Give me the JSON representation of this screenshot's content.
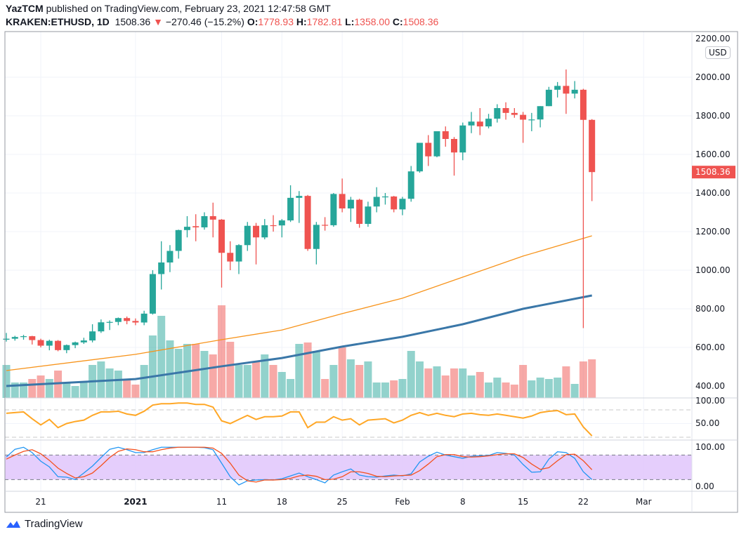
{
  "header": {
    "author": "YazTCM",
    "published": "published on TradingView.com, February 23, 2021 12:47:58 GMT",
    "symbol": "KRAKEN:ETHUSD, 1D",
    "last": "1508.36",
    "change": "−270.46 (−15.2%)",
    "o_label": "O:",
    "o": "1778.93",
    "h_label": "H:",
    "h": "1782.81",
    "l_label": "L:",
    "l": "1358.00",
    "c_label": "C:",
    "c": "1508.36"
  },
  "currency_button": "USD",
  "logo_text": "TradingView",
  "colors": {
    "up": "#26a69a",
    "down": "#ef5350",
    "ma_short": "#f7931a",
    "ma_long": "#3a77a8",
    "rsi": "#ffa726",
    "stoch_k": "#2196f3",
    "stoch_d": "#f4511e",
    "stoch_band": "#e1c6fb",
    "last_price_label": "#ef5350"
  },
  "chart_data": {
    "type": "candlestick",
    "price_axis": {
      "ticks": [
        "2200.00",
        "2000.00",
        "1800.00",
        "1600.00",
        "1400.00",
        "1200.00",
        "1000.00",
        "800.00",
        "600.00",
        "400.00"
      ],
      "range": [
        400,
        2200
      ],
      "last_price_label": "1508.36"
    },
    "time_axis": {
      "ticks": [
        {
          "label": "21",
          "date": "2020-12-21",
          "bold": false
        },
        {
          "label": "2021",
          "date": "2021-01-01",
          "bold": true
        },
        {
          "label": "11",
          "date": "2021-01-11",
          "bold": false
        },
        {
          "label": "18",
          "date": "2021-01-18",
          "bold": false
        },
        {
          "label": "25",
          "date": "2021-01-25",
          "bold": false
        },
        {
          "label": "Feb",
          "date": "2021-02-01",
          "bold": false
        },
        {
          "label": "8",
          "date": "2021-02-08",
          "bold": false
        },
        {
          "label": "15",
          "date": "2021-02-15",
          "bold": false
        },
        {
          "label": "22",
          "date": "2021-02-22",
          "bold": false
        },
        {
          "label": "Mar",
          "date": "2021-03-01",
          "bold": false
        }
      ]
    },
    "start_date": "2020-12-17",
    "ohlc": [
      [
        640,
        675,
        630,
        645
      ],
      [
        645,
        660,
        635,
        654
      ],
      [
        654,
        665,
        640,
        658
      ],
      [
        658,
        660,
        615,
        638
      ],
      [
        638,
        645,
        600,
        609
      ],
      [
        609,
        640,
        585,
        634
      ],
      [
        634,
        638,
        580,
        586
      ],
      [
        586,
        615,
        570,
        612
      ],
      [
        612,
        630,
        596,
        626
      ],
      [
        626,
        650,
        618,
        636
      ],
      [
        636,
        720,
        626,
        683
      ],
      [
        683,
        745,
        675,
        730
      ],
      [
        730,
        740,
        690,
        732
      ],
      [
        732,
        755,
        715,
        752
      ],
      [
        752,
        760,
        720,
        737
      ],
      [
        737,
        750,
        715,
        729
      ],
      [
        729,
        790,
        715,
        775
      ],
      [
        775,
        1000,
        770,
        980
      ],
      [
        980,
        1150,
        900,
        1040
      ],
      [
        1040,
        1130,
        990,
        1100
      ],
      [
        1100,
        1210,
        1060,
        1208
      ],
      [
        1208,
        1280,
        1170,
        1225
      ],
      [
        1228,
        1290,
        1150,
        1222
      ],
      [
        1222,
        1300,
        1210,
        1280
      ],
      [
        1280,
        1350,
        1170,
        1262
      ],
      [
        1262,
        1265,
        910,
        1090
      ],
      [
        1090,
        1150,
        1000,
        1045
      ],
      [
        1045,
        1135,
        980,
        1130
      ],
      [
        1130,
        1250,
        1100,
        1230
      ],
      [
        1230,
        1245,
        1030,
        1170
      ],
      [
        1170,
        1265,
        1160,
        1233
      ],
      [
        1233,
        1285,
        1200,
        1232
      ],
      [
        1232,
        1265,
        1170,
        1258
      ],
      [
        1258,
        1440,
        1250,
        1375
      ],
      [
        1375,
        1410,
        1245,
        1385
      ],
      [
        1385,
        1390,
        1100,
        1110
      ],
      [
        1110,
        1250,
        1030,
        1235
      ],
      [
        1235,
        1275,
        1205,
        1233
      ],
      [
        1233,
        1400,
        1225,
        1395
      ],
      [
        1395,
        1475,
        1300,
        1320
      ],
      [
        1320,
        1380,
        1250,
        1365
      ],
      [
        1365,
        1370,
        1220,
        1240
      ],
      [
        1240,
        1355,
        1225,
        1330
      ],
      [
        1330,
        1430,
        1300,
        1380
      ],
      [
        1380,
        1400,
        1340,
        1382
      ],
      [
        1382,
        1385,
        1300,
        1315
      ],
      [
        1315,
        1380,
        1285,
        1370
      ],
      [
        1370,
        1540,
        1355,
        1512
      ],
      [
        1512,
        1660,
        1505,
        1660
      ],
      [
        1660,
        1700,
        1540,
        1590
      ],
      [
        1590,
        1720,
        1585,
        1720
      ],
      [
        1720,
        1745,
        1640,
        1680
      ],
      [
        1680,
        1690,
        1490,
        1610
      ],
      [
        1610,
        1765,
        1570,
        1750
      ],
      [
        1750,
        1820,
        1710,
        1770
      ],
      [
        1770,
        1840,
        1700,
        1745
      ],
      [
        1745,
        1810,
        1735,
        1785
      ],
      [
        1785,
        1860,
        1765,
        1840
      ],
      [
        1840,
        1870,
        1780,
        1815
      ],
      [
        1815,
        1840,
        1790,
        1805
      ],
      [
        1805,
        1820,
        1660,
        1780
      ],
      [
        1780,
        1815,
        1720,
        1781
      ],
      [
        1781,
        1850,
        1740,
        1850
      ],
      [
        1850,
        1950,
        1850,
        1935
      ],
      [
        1935,
        1975,
        1895,
        1955
      ],
      [
        1955,
        2040,
        1810,
        1915
      ],
      [
        1915,
        1980,
        1890,
        1935
      ],
      [
        1935,
        1940,
        700,
        1779
      ],
      [
        1778.93,
        1782.81,
        1358,
        1508.36
      ]
    ],
    "volume_relative": [
      47,
      22,
      22,
      27,
      32,
      27,
      39,
      22,
      17,
      22,
      47,
      52,
      42,
      39,
      25,
      19,
      47,
      89,
      117,
      82,
      70,
      77,
      77,
      67,
      62,
      132,
      80,
      47,
      47,
      52,
      62,
      47,
      37,
      27,
      77,
      79,
      67,
      27,
      47,
      72,
      55,
      47,
      52,
      22,
      22,
      25,
      27,
      67,
      52,
      42,
      45,
      32,
      42,
      42,
      32,
      37,
      22,
      29,
      22,
      19,
      47,
      25,
      29,
      27,
      29,
      45,
      20,
      52,
      55
    ],
    "ma_short": [
      {
        "date": "2020-12-17",
        "v": 480
      },
      {
        "date": "2021-01-01",
        "v": 564
      },
      {
        "date": "2021-01-11",
        "v": 640
      },
      {
        "date": "2021-01-18",
        "v": 690
      },
      {
        "date": "2021-01-25",
        "v": 775
      },
      {
        "date": "2021-02-01",
        "v": 855
      },
      {
        "date": "2021-02-08",
        "v": 964
      },
      {
        "date": "2021-02-15",
        "v": 1073
      },
      {
        "date": "2021-02-23",
        "v": 1178
      }
    ],
    "ma_long": [
      {
        "date": "2020-12-17",
        "v": 400
      },
      {
        "date": "2021-01-01",
        "v": 436
      },
      {
        "date": "2021-01-11",
        "v": 502
      },
      {
        "date": "2021-01-18",
        "v": 545
      },
      {
        "date": "2021-01-25",
        "v": 604
      },
      {
        "date": "2021-02-01",
        "v": 655
      },
      {
        "date": "2021-02-08",
        "v": 720
      },
      {
        "date": "2021-02-15",
        "v": 800
      },
      {
        "date": "2021-02-23",
        "v": 869
      }
    ],
    "rsi": {
      "ticks": [
        "100.00",
        "50.00"
      ],
      "bands": [
        70,
        30
      ],
      "values": [
        65,
        66,
        67,
        57,
        48,
        56,
        44,
        50,
        53,
        55,
        62,
        67,
        67,
        68,
        64,
        62,
        68,
        77,
        79,
        79,
        80,
        80,
        78,
        78,
        74,
        54,
        50,
        56,
        62,
        56,
        60,
        60,
        61,
        67,
        67,
        44,
        52,
        52,
        60,
        55,
        57,
        48,
        55,
        56,
        57,
        51,
        55,
        62,
        66,
        62,
        65,
        62,
        60,
        64,
        65,
        63,
        62,
        64,
        62,
        60,
        58,
        61,
        66,
        68,
        69,
        63,
        64,
        45,
        32
      ]
    },
    "stoch_rsi": {
      "ticks": [
        "100.00",
        "0.00"
      ],
      "bands": [
        80,
        20
      ],
      "k": [
        75,
        94,
        99,
        86,
        65,
        51,
        27,
        26,
        20,
        36,
        53,
        74,
        94,
        99,
        93,
        86,
        86,
        93,
        99,
        99,
        99,
        99,
        99,
        98,
        93,
        60,
        27,
        7,
        17,
        19,
        20,
        19,
        22,
        29,
        36,
        27,
        20,
        12,
        31,
        39,
        46,
        31,
        27,
        26,
        29,
        31,
        29,
        34,
        63,
        77,
        87,
        80,
        76,
        72,
        77,
        78,
        79,
        86,
        84,
        80,
        57,
        38,
        39,
        70,
        88,
        86,
        72,
        39,
        20
      ],
      "d": [
        70,
        80,
        89,
        93,
        83,
        67,
        48,
        35,
        24,
        27,
        36,
        54,
        74,
        89,
        95,
        93,
        88,
        88,
        93,
        97,
        99,
        99,
        99,
        99,
        97,
        84,
        60,
        31,
        17,
        14,
        19,
        19,
        20,
        23,
        29,
        31,
        28,
        20,
        21,
        27,
        39,
        39,
        35,
        28,
        27,
        29,
        30,
        31,
        42,
        58,
        76,
        81,
        81,
        76,
        75,
        76,
        78,
        81,
        83,
        83,
        74,
        58,
        45,
        49,
        66,
        81,
        82,
        66,
        44
      ]
    }
  }
}
